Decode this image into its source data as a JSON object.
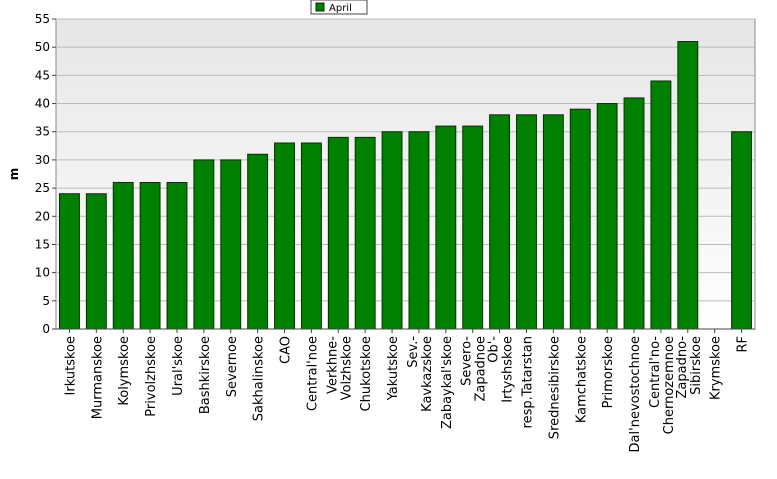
{
  "chart_data": {
    "type": "bar",
    "legend_position": "top",
    "y_label": "m",
    "categories": [
      "Irkutskoe",
      "Murmanskoe",
      "Kolymskoe",
      "Privolzhskoe",
      "Ural'skoe",
      "Bashkirskoe",
      "Severnoe",
      "Sakhalinskoe",
      "CAO",
      "Central'noe",
      "Verkhne-\nVolzhskoe",
      "Chukotskoe",
      "Yakutskoe",
      "Sev.-\nKavkazskoe",
      "Zabaykal'skoe",
      "Severo-\nZapadnoe",
      "Ob'-\nIrtyshskoe",
      "resp.Tatarstan",
      "Srednesibirskoe",
      "Kamchatskoe",
      "Primorskoe",
      "Dal'nevostochnoe",
      "Central'no-\nChernozemnoe",
      "Zapadno-\nSibirskoe",
      "Krymskoe",
      "RF"
    ],
    "series": [
      {
        "name": "April",
        "color": "#008000",
        "values": [
          24,
          24,
          26,
          26,
          26,
          30,
          30,
          31,
          33,
          33,
          34,
          34,
          35,
          35,
          36,
          36,
          38,
          38,
          38,
          39,
          40,
          41,
          44,
          51,
          null,
          35
        ]
      }
    ],
    "ylim": [
      0,
      55
    ],
    "yticks": [
      0,
      5,
      10,
      15,
      20,
      25,
      30,
      35,
      40,
      45,
      50,
      55
    ],
    "grid": true
  }
}
